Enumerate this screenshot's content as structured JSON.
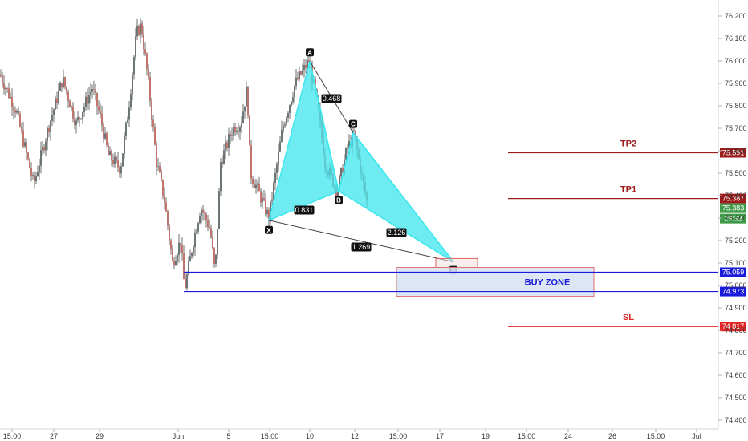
{
  "chart_data": {
    "type": "line",
    "y_ticks": [
      "76.200",
      "76.100",
      "76.000",
      "75.900",
      "75.800",
      "75.700",
      "75.600",
      "75.500",
      "75.400",
      "75.300",
      "75.200",
      "75.100",
      "75.000",
      "74.900",
      "74.800",
      "74.700",
      "74.600",
      "74.500",
      "74.400"
    ],
    "ylim": [
      74.38,
      76.26
    ],
    "x_ticks": [
      "15:00",
      "27",
      "29",
      "Jun",
      "5",
      "15:00",
      "10",
      "12",
      "15:00",
      "17",
      "19",
      "15:00",
      "24",
      "26",
      "15:00",
      "Jul"
    ],
    "price_path": [
      [
        0,
        75.94
      ],
      [
        20,
        75.78
      ],
      [
        42,
        75.45
      ],
      [
        60,
        75.7
      ],
      [
        78,
        75.92
      ],
      [
        95,
        75.72
      ],
      [
        115,
        75.88
      ],
      [
        125,
        75.75
      ],
      [
        135,
        75.58
      ],
      [
        150,
        75.52
      ],
      [
        160,
        75.78
      ],
      [
        170,
        76.12
      ],
      [
        176,
        76.16
      ],
      [
        185,
        75.9
      ],
      [
        195,
        75.55
      ],
      [
        205,
        75.38
      ],
      [
        215,
        75.1
      ],
      [
        225,
        75.2
      ],
      [
        230,
        74.98
      ],
      [
        240,
        75.18
      ],
      [
        250,
        75.35
      ],
      [
        262,
        75.25
      ],
      [
        268,
        75.05
      ],
      [
        275,
        75.55
      ],
      [
        290,
        75.7
      ],
      [
        300,
        75.72
      ],
      [
        308,
        75.88
      ],
      [
        312,
        75.5
      ],
      [
        322,
        75.42
      ],
      [
        335,
        75.3
      ],
      [
        352,
        75.7
      ],
      [
        368,
        75.9
      ],
      [
        385,
        76.0
      ],
      [
        395,
        75.82
      ],
      [
        405,
        75.55
      ],
      [
        420,
        75.42
      ],
      [
        432,
        75.6
      ],
      [
        441,
        75.68
      ],
      [
        450,
        75.5
      ],
      [
        458,
        75.36
      ]
    ],
    "pattern": {
      "points": [
        {
          "label": "X",
          "t": 335,
          "price": 75.29
        },
        {
          "label": "A",
          "t": 386,
          "price": 75.999
        },
        {
          "label": "B",
          "t": 422,
          "price": 75.42
        },
        {
          "label": "C",
          "t": 440,
          "price": 75.68
        },
        {
          "label": "D",
          "t": 565,
          "price": 75.105
        }
      ],
      "ratios": [
        {
          "value": "0.468",
          "between": [
            "A",
            "C"
          ]
        },
        {
          "value": "0.831",
          "between": [
            "X",
            "B"
          ]
        },
        {
          "value": "2.126",
          "between": [
            "B",
            "D"
          ]
        },
        {
          "value": "1.269",
          "between": [
            "X",
            "D"
          ]
        }
      ],
      "fill_color": "#3ee6ee"
    },
    "levels": [
      {
        "name": "TP2",
        "price": 75.591,
        "tag": "75.591",
        "color": "#9b1c1c"
      },
      {
        "name": "TP1",
        "price": 75.387,
        "tag": "75.387",
        "color": "#9b1c1c"
      },
      {
        "name": "SL",
        "price": 74.817,
        "tag": "74.817",
        "color": "#e02424"
      }
    ],
    "zone": {
      "label": "BUY ZONE",
      "upper": 75.059,
      "lower": 74.973,
      "upper_tag": "75.059",
      "lower_tag": "74.973",
      "color": "#1a1adb"
    },
    "current_price": {
      "value": "75.383",
      "countdown": "29:32",
      "color": "#3f9a4a"
    }
  }
}
